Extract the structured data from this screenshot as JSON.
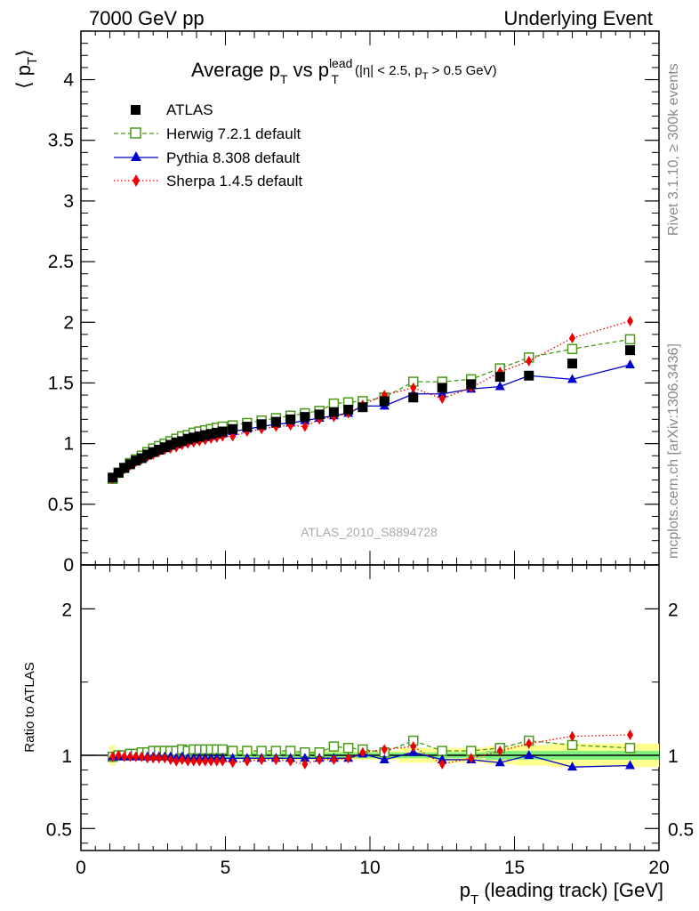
{
  "header": {
    "left": "7000 GeV pp",
    "right": "Underlying Event"
  },
  "side_labels": {
    "rivet": "Rivet 3.1.10, ≥ 300k events",
    "mcplots": "mcplots.cern.ch [arXiv:1306.3436]"
  },
  "watermark": "ATLAS_2010_S8894728",
  "title": {
    "main": "Average p",
    "sub_t": "T",
    "vs": " vs p",
    "sup_lead": "lead",
    "sub_t2": "T",
    "cuts_a": "(|η| < 2.5, p",
    "cuts_sub": "T",
    "cuts_b": " > 0.5 GeV)"
  },
  "axes": {
    "ylabel_main": "⟨ p",
    "ylabel_main_sub": "T",
    "ylabel_main_close": "⟩",
    "ylabel_ratio": "Ratio to ATLAS",
    "xlabel": "p",
    "xlabel_sub": "T",
    "xlabel_rest": " (leading track) [GeV]"
  },
  "legend": [
    {
      "label": "ATLAS"
    },
    {
      "label": "Herwig 7.2.1 default"
    },
    {
      "label": "Pythia 8.308 default"
    },
    {
      "label": "Sherpa 1.4.5 default"
    }
  ],
  "colors": {
    "atlas": "#000000",
    "herwig": "#4a9a1a",
    "pythia": "#0000cc",
    "sherpa": "#ee0000",
    "band_inner": "#80f080",
    "band_outer": "#ffff90"
  },
  "chart_data": [
    {
      "type": "scatter",
      "panel": "main",
      "xlim": [
        0,
        20
      ],
      "ylim": [
        0,
        4.4
      ],
      "yticks": [
        0,
        0.5,
        1,
        1.5,
        2,
        2.5,
        3,
        3.5,
        4
      ],
      "ytick_labels": [
        "0",
        "0.5",
        "1",
        "1.5",
        "2",
        "2.5",
        "3",
        "3.5",
        "4"
      ],
      "x": [
        1.1,
        1.3,
        1.5,
        1.7,
        1.9,
        2.1,
        2.3,
        2.5,
        2.7,
        2.9,
        3.1,
        3.3,
        3.5,
        3.7,
        3.9,
        4.1,
        4.3,
        4.5,
        4.7,
        4.9,
        5.25,
        5.75,
        6.25,
        6.75,
        7.25,
        7.75,
        8.25,
        8.75,
        9.25,
        9.75,
        10.5,
        11.5,
        12.5,
        13.5,
        14.5,
        15.5,
        17.0,
        19.0
      ],
      "series": [
        {
          "name": "ATLAS",
          "values": [
            0.72,
            0.76,
            0.8,
            0.83,
            0.86,
            0.88,
            0.91,
            0.93,
            0.95,
            0.97,
            0.99,
            1.01,
            1.02,
            1.04,
            1.05,
            1.06,
            1.07,
            1.08,
            1.09,
            1.1,
            1.12,
            1.14,
            1.16,
            1.18,
            1.2,
            1.22,
            1.24,
            1.26,
            1.28,
            1.3,
            1.35,
            1.38,
            1.46,
            1.49,
            1.55,
            1.56,
            1.66,
            1.77
          ]
        },
        {
          "name": "Herwig 7.2.1 default",
          "values": [
            0.71,
            0.76,
            0.8,
            0.84,
            0.87,
            0.9,
            0.93,
            0.96,
            0.98,
            1.0,
            1.02,
            1.04,
            1.06,
            1.07,
            1.09,
            1.1,
            1.11,
            1.12,
            1.13,
            1.14,
            1.15,
            1.17,
            1.19,
            1.21,
            1.23,
            1.25,
            1.27,
            1.33,
            1.34,
            1.35,
            1.38,
            1.51,
            1.51,
            1.53,
            1.62,
            1.71,
            1.78,
            1.86
          ]
        },
        {
          "name": "Pythia 8.308 default",
          "values": [
            0.71,
            0.75,
            0.79,
            0.82,
            0.85,
            0.87,
            0.9,
            0.92,
            0.94,
            0.96,
            0.98,
            0.99,
            1.01,
            1.02,
            1.03,
            1.04,
            1.05,
            1.06,
            1.07,
            1.08,
            1.1,
            1.12,
            1.14,
            1.16,
            1.17,
            1.19,
            1.21,
            1.23,
            1.25,
            1.31,
            1.31,
            1.41,
            1.41,
            1.45,
            1.47,
            1.56,
            1.53,
            1.65
          ]
        },
        {
          "name": "Sherpa 1.4.5 default",
          "values": [
            0.71,
            0.76,
            0.79,
            0.82,
            0.85,
            0.87,
            0.89,
            0.91,
            0.93,
            0.95,
            0.96,
            0.97,
            0.99,
            1.0,
            1.01,
            1.02,
            1.03,
            1.04,
            1.05,
            1.06,
            1.06,
            1.1,
            1.12,
            1.14,
            1.15,
            1.14,
            1.2,
            1.22,
            1.25,
            1.32,
            1.4,
            1.46,
            1.37,
            1.46,
            1.59,
            1.68,
            1.87,
            2.01
          ]
        }
      ]
    },
    {
      "type": "scatter",
      "panel": "ratio",
      "xlim": [
        0,
        20
      ],
      "ylim": [
        0.35,
        2.3
      ],
      "yticks": [
        0.5,
        1,
        2
      ],
      "ytick_labels": [
        "0.5",
        "1",
        "2"
      ],
      "xticks": [
        0,
        5,
        10,
        15,
        20
      ],
      "xtick_labels": [
        "0",
        "5",
        "10",
        "15",
        "20"
      ],
      "reference_line": 1,
      "x": [
        1.1,
        1.3,
        1.5,
        1.7,
        1.9,
        2.1,
        2.3,
        2.5,
        2.7,
        2.9,
        3.1,
        3.3,
        3.5,
        3.7,
        3.9,
        4.1,
        4.3,
        4.5,
        4.7,
        4.9,
        5.25,
        5.75,
        6.25,
        6.75,
        7.25,
        7.75,
        8.25,
        8.75,
        9.25,
        9.75,
        10.5,
        11.5,
        12.5,
        13.5,
        14.5,
        15.5,
        17.0,
        19.0
      ],
      "series": [
        {
          "name": "Herwig 7.2.1 default",
          "values": [
            0.99,
            1.0,
            1.0,
            1.01,
            1.01,
            1.02,
            1.02,
            1.03,
            1.03,
            1.03,
            1.03,
            1.03,
            1.04,
            1.03,
            1.04,
            1.04,
            1.04,
            1.04,
            1.04,
            1.04,
            1.03,
            1.03,
            1.03,
            1.03,
            1.03,
            1.02,
            1.02,
            1.06,
            1.05,
            1.04,
            1.02,
            1.1,
            1.03,
            1.03,
            1.05,
            1.1,
            1.07,
            1.05
          ]
        },
        {
          "name": "Pythia 8.308 default",
          "values": [
            0.99,
            0.99,
            0.99,
            0.99,
            0.99,
            0.99,
            0.99,
            0.99,
            0.99,
            0.99,
            0.99,
            0.98,
            0.99,
            0.98,
            0.98,
            0.98,
            0.98,
            0.98,
            0.98,
            0.98,
            0.98,
            0.98,
            0.98,
            0.98,
            0.98,
            0.98,
            0.98,
            0.98,
            0.98,
            1.01,
            0.97,
            1.02,
            0.97,
            0.97,
            0.95,
            1.0,
            0.92,
            0.93
          ]
        },
        {
          "name": "Sherpa 1.4.5 default",
          "values": [
            0.99,
            1.0,
            0.99,
            0.99,
            0.99,
            0.99,
            0.98,
            0.98,
            0.98,
            0.98,
            0.97,
            0.96,
            0.97,
            0.96,
            0.96,
            0.96,
            0.96,
            0.96,
            0.96,
            0.96,
            0.95,
            0.96,
            0.97,
            0.97,
            0.96,
            0.94,
            0.97,
            0.97,
            0.98,
            1.02,
            1.04,
            1.06,
            0.94,
            0.98,
            1.03,
            1.08,
            1.13,
            1.14
          ]
        }
      ],
      "band_inner_halfwidth": [
        0.02,
        0.02,
        0.02,
        0.02,
        0.02,
        0.02,
        0.02,
        0.02,
        0.02,
        0.02,
        0.02,
        0.02,
        0.02,
        0.02,
        0.02,
        0.02,
        0.02,
        0.02,
        0.02,
        0.02,
        0.02,
        0.02,
        0.02,
        0.02,
        0.02,
        0.02,
        0.02,
        0.02,
        0.02,
        0.02,
        0.02,
        0.02,
        0.02,
        0.02,
        0.03,
        0.03,
        0.03,
        0.03
      ],
      "band_outer_halfwidth": [
        0.07,
        0.03,
        0.03,
        0.03,
        0.03,
        0.03,
        0.03,
        0.03,
        0.03,
        0.03,
        0.03,
        0.03,
        0.03,
        0.03,
        0.03,
        0.03,
        0.03,
        0.03,
        0.03,
        0.03,
        0.03,
        0.03,
        0.03,
        0.03,
        0.03,
        0.03,
        0.03,
        0.03,
        0.03,
        0.03,
        0.03,
        0.05,
        0.05,
        0.05,
        0.06,
        0.07,
        0.08,
        0.08
      ]
    }
  ]
}
